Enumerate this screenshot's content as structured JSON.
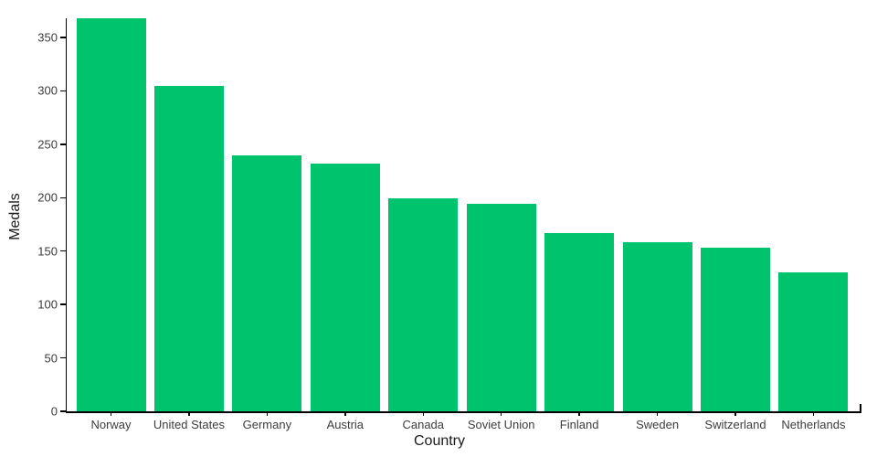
{
  "chart_data": {
    "type": "bar",
    "title": "",
    "xlabel": "Country",
    "ylabel": "Medals",
    "categories": [
      "Norway",
      "United States",
      "Germany",
      "Austria",
      "Canada",
      "Soviet Union",
      "Finland",
      "Sweden",
      "Switzerland",
      "Netherlands"
    ],
    "values": [
      368,
      305,
      240,
      232,
      199,
      194,
      167,
      158,
      153,
      130
    ],
    "yticks": [
      0,
      50,
      100,
      150,
      200,
      250,
      300,
      350
    ],
    "ylim": [
      0,
      368
    ],
    "grid": false,
    "legend": false,
    "bar_color": "#00c46d",
    "axis_color": "#000000",
    "tick_label_color": "#3d3d3d"
  }
}
